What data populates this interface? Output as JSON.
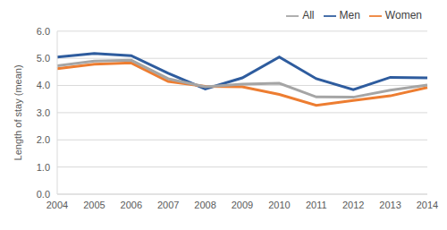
{
  "chart_data": {
    "type": "line",
    "y_label": "Length of stay (mean)",
    "categories": [
      "2004",
      "2005",
      "2006",
      "2007",
      "2008",
      "2009",
      "2010",
      "2011",
      "2012",
      "2013",
      "2014"
    ],
    "series": [
      {
        "name": "Men",
        "color": "#2E5C9E",
        "values": [
          5.05,
          5.18,
          5.1,
          4.45,
          3.87,
          4.28,
          5.05,
          4.25,
          3.85,
          4.3,
          4.28
        ]
      },
      {
        "name": "Women",
        "color": "#ED7D31",
        "values": [
          4.62,
          4.78,
          4.83,
          4.15,
          3.97,
          3.95,
          3.67,
          3.27,
          3.45,
          3.62,
          3.93
        ]
      },
      {
        "name": "All",
        "color": "#A5A5A5",
        "values": [
          4.73,
          4.9,
          4.93,
          4.25,
          3.95,
          4.05,
          4.08,
          3.58,
          3.57,
          3.83,
          4.02
        ]
      }
    ],
    "ylim": [
      0,
      6
    ],
    "yticks": [
      {
        "value": 0,
        "label": "0.0"
      },
      {
        "value": 1,
        "label": "1.0"
      },
      {
        "value": 2,
        "label": "2.0"
      },
      {
        "value": 3,
        "label": "3.0"
      },
      {
        "value": 4,
        "label": "4.0"
      },
      {
        "value": 5,
        "label": "5.0"
      },
      {
        "value": 6,
        "label": "6.0"
      }
    ],
    "grid": true,
    "legend": "upper right"
  }
}
